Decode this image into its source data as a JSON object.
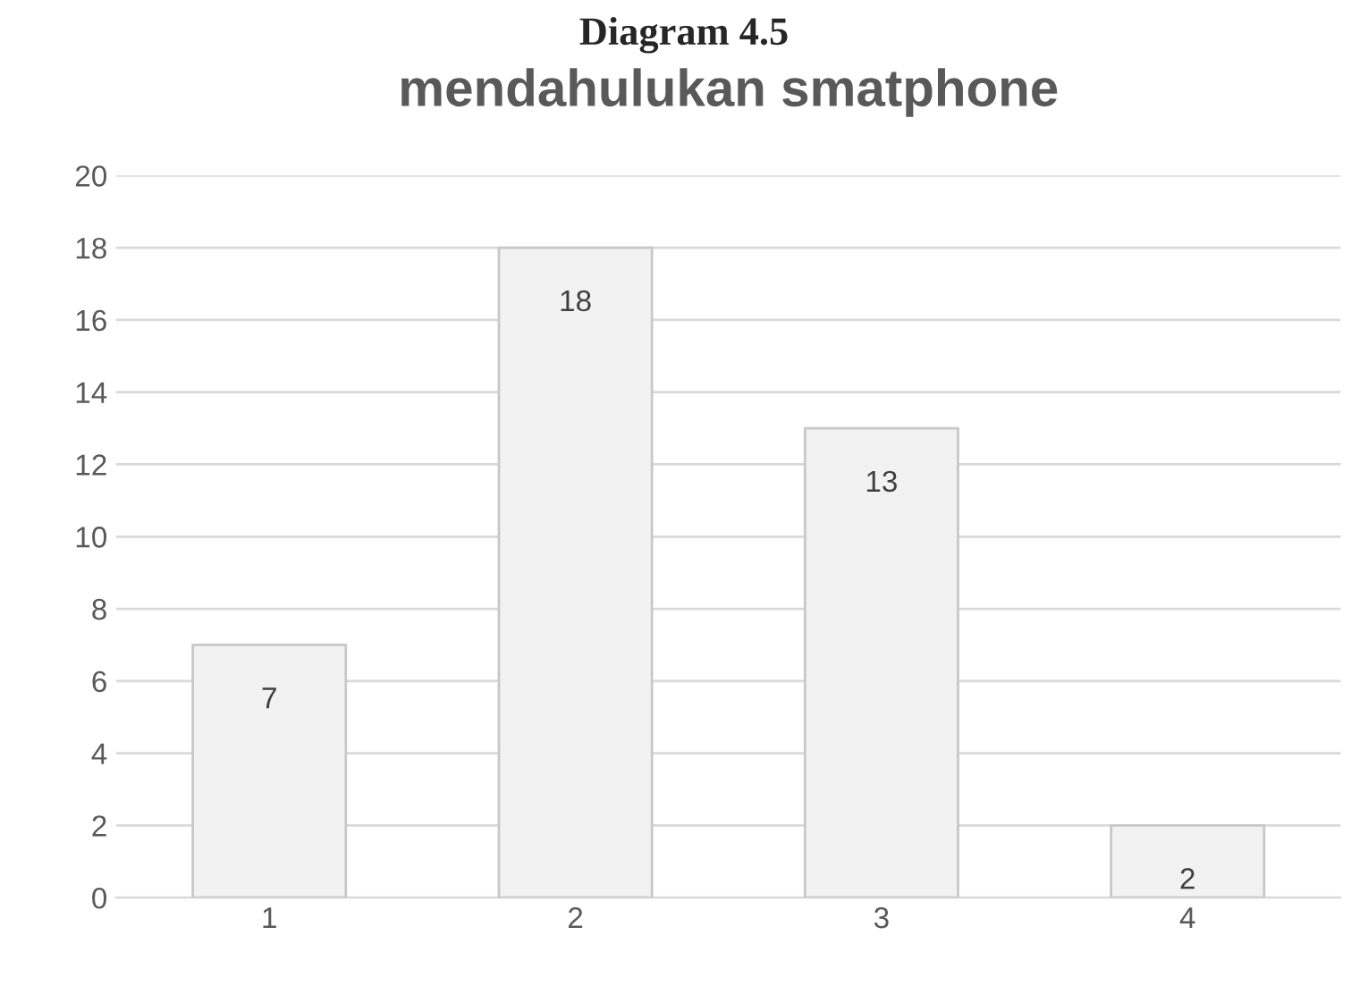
{
  "chart_data": {
    "type": "bar",
    "title": "mendahulukan smatphone",
    "annotations": [
      "Diagram 4.5"
    ],
    "categories": [
      "1",
      "2",
      "3",
      "4"
    ],
    "values": [
      7,
      18,
      13,
      2
    ],
    "color": "#f2f2f2",
    "ylim": [
      0,
      20
    ],
    "yticks": [
      0,
      2,
      4,
      6,
      8,
      10,
      12,
      14,
      16,
      18,
      20
    ],
    "grid": "y",
    "data_labels": true
  }
}
